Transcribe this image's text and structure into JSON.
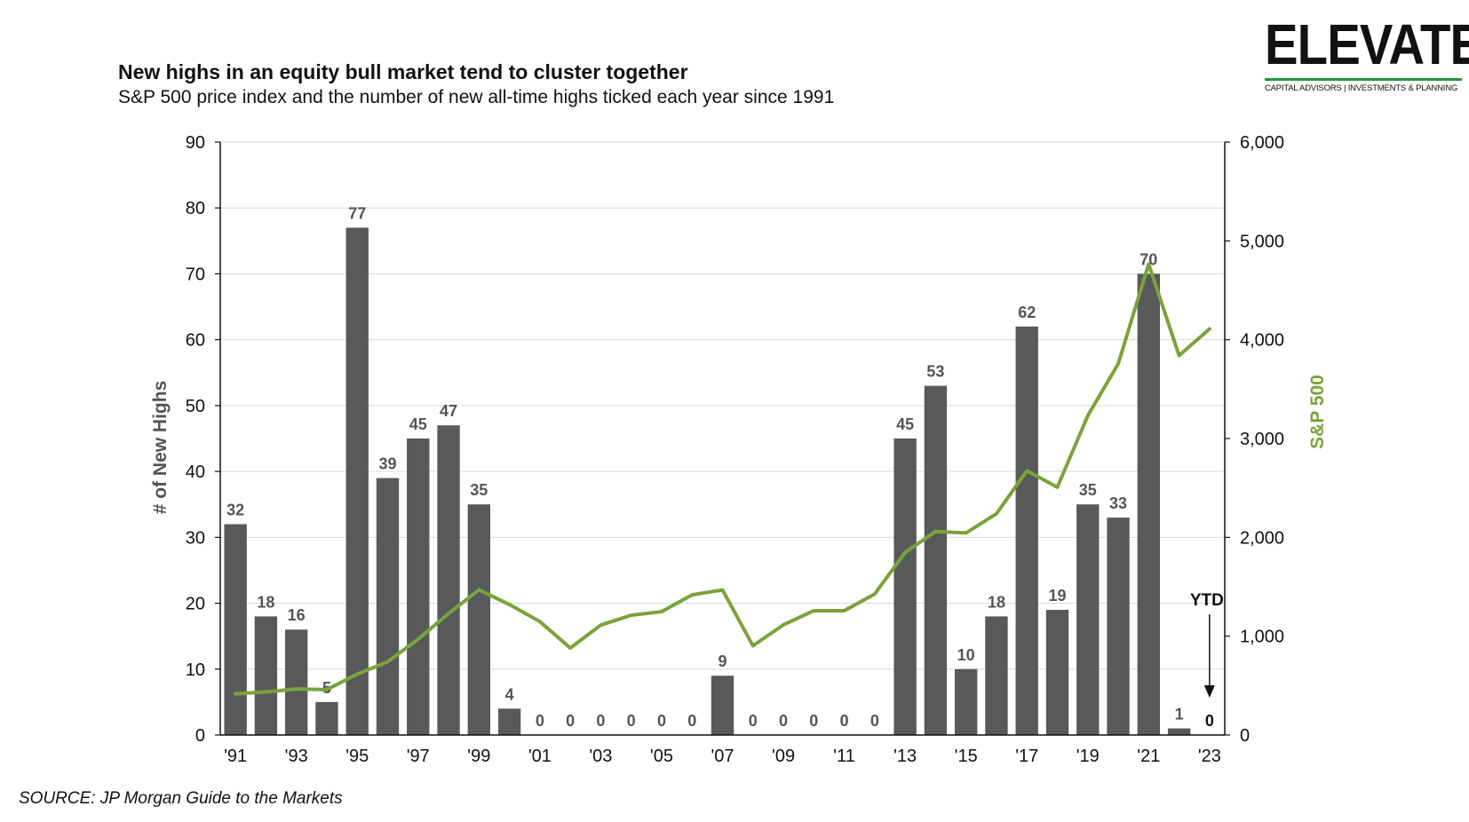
{
  "header": {
    "title": "New highs in an equity bull market tend to cluster together",
    "subtitle": "S&P 500 price index and the number of new all-time highs ticked each year since 1991"
  },
  "logo": {
    "word": "ELEVATE",
    "tagline": "CAPITAL ADVISORS | INVESTMENTS & PLANNING",
    "accent_color": "#1f9a3a"
  },
  "footer": {
    "source": "SOURCE: JP Morgan Guide to the Markets"
  },
  "colors": {
    "bar": "#58595b",
    "line": "#7aa33a",
    "grid": "#d9d9d9"
  },
  "chart_data": {
    "type": "bar",
    "title": "New highs in an equity bull market tend to cluster together",
    "subtitle": "S&P 500 price index and the number of new all-time highs ticked each year since 1991",
    "x": [
      1991,
      1992,
      1993,
      1994,
      1995,
      1996,
      1997,
      1998,
      1999,
      2000,
      2001,
      2002,
      2003,
      2004,
      2005,
      2006,
      2007,
      2008,
      2009,
      2010,
      2011,
      2012,
      2013,
      2014,
      2015,
      2016,
      2017,
      2018,
      2019,
      2020,
      2021,
      2022,
      2023
    ],
    "xtick_labels": [
      "'91",
      "'93",
      "'95",
      "'97",
      "'99",
      "'01",
      "'03",
      "'05",
      "'07",
      "'09",
      "'11",
      "'13",
      "'15",
      "'17",
      "'19",
      "'21",
      "'23"
    ],
    "ylabel": "# of New Highs",
    "ylim": [
      0,
      90
    ],
    "yticks": [
      0,
      10,
      20,
      30,
      40,
      50,
      60,
      70,
      80,
      90
    ],
    "y2label": "S&P 500",
    "y2lim": [
      0,
      6000
    ],
    "y2ticks": [
      "0",
      "1,000",
      "2,000",
      "3,000",
      "4,000",
      "5,000",
      "6,000"
    ],
    "series": [
      {
        "type": "bar",
        "values": [
          32,
          18,
          16,
          5,
          77,
          39,
          45,
          47,
          35,
          4,
          0,
          0,
          0,
          0,
          0,
          0,
          9,
          0,
          0,
          0,
          0,
          0,
          45,
          53,
          10,
          18,
          62,
          19,
          35,
          33,
          70,
          1,
          0
        ]
      },
      {
        "type": "line",
        "axis": "right",
        "values": [
          417,
          436,
          466,
          459,
          616,
          741,
          970,
          1229,
          1469,
          1320,
          1148,
          880,
          1112,
          1212,
          1248,
          1418,
          1468,
          903,
          1115,
          1258,
          1258,
          1426,
          1848,
          2059,
          2044,
          2239,
          2674,
          2507,
          3231,
          3756,
          4766,
          3840,
          4109
        ]
      }
    ],
    "annotations": [
      "YTD"
    ],
    "grid": true
  }
}
